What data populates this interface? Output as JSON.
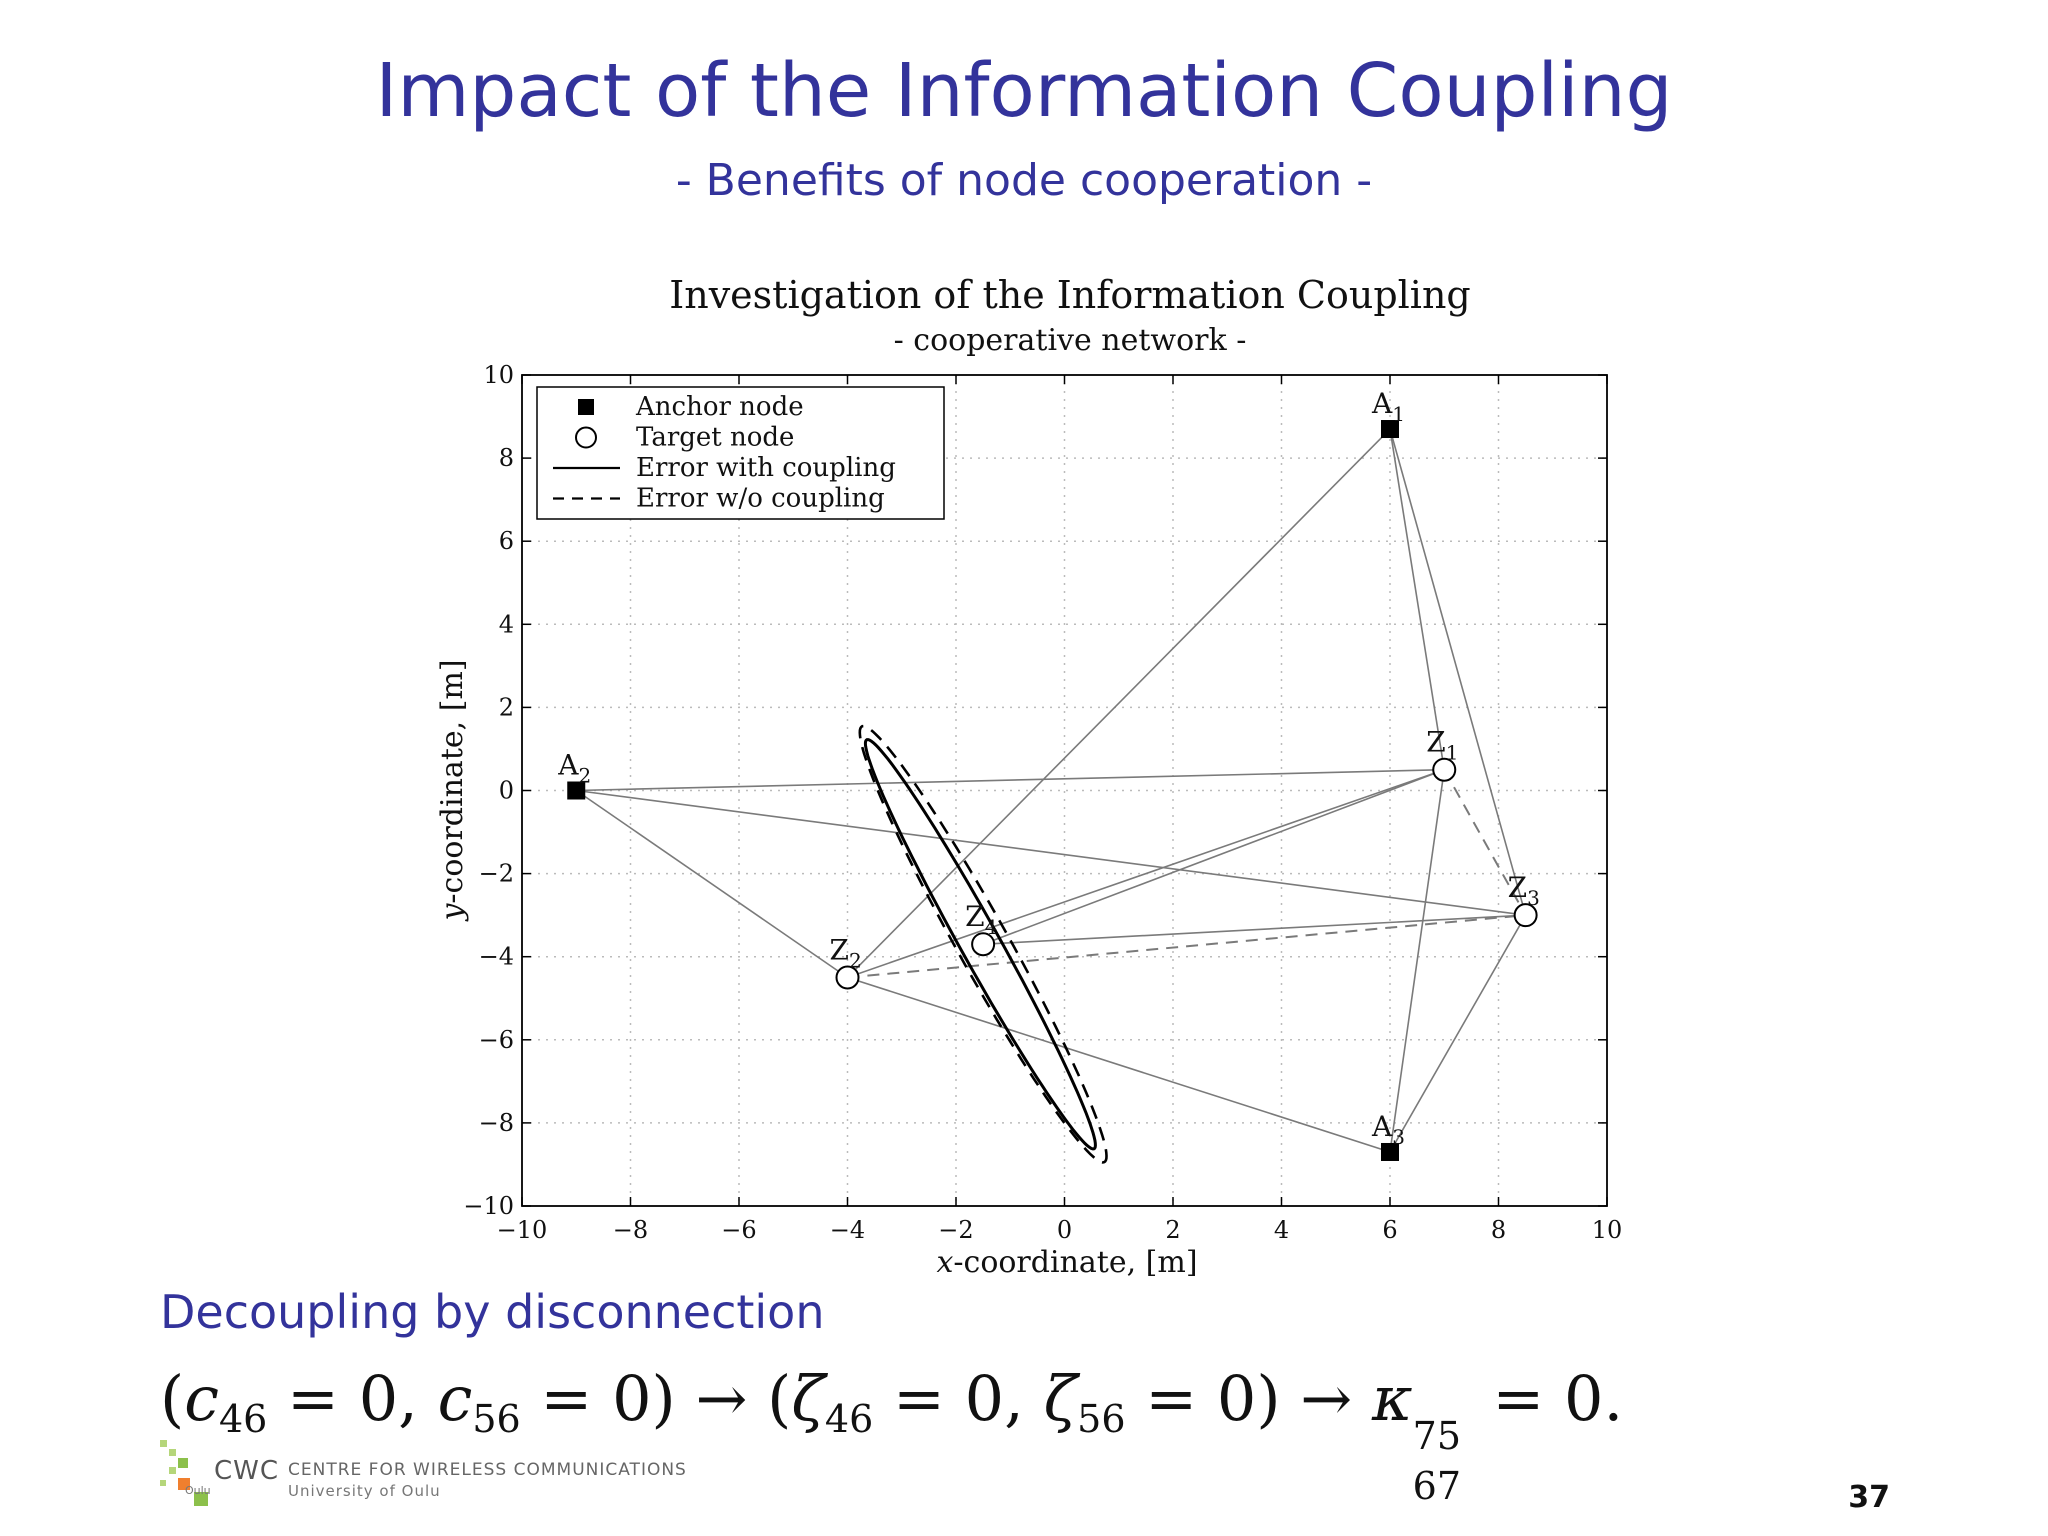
{
  "slide": {
    "title": "Impact of the Information Coupling",
    "subtitle": "- Benefits of node cooperation -",
    "section_heading": "Decoupling by disconnection",
    "page_number": "37"
  },
  "equation": {
    "c46": "c",
    "c46_sub": "46",
    "c56": "c",
    "c56_sub": "56",
    "zeta": "ζ",
    "zeta46_sub": "46",
    "zeta56_sub": "56",
    "kappa": "κ",
    "kappa_sup": "75",
    "kappa_sub": "67",
    "zero": "0",
    "equals": "=",
    "arrow": "→",
    "lparen": "(",
    "rparen": ")",
    "comma": ",",
    "period": "."
  },
  "logo": {
    "abbrev": "CWC",
    "city": "Oulu",
    "centre": "CENTRE FOR WIRELESS COMMUNICATIONS",
    "university": "University of Oulu",
    "colors": {
      "green_light": "#b5d67a",
      "green": "#8cc04b",
      "orange": "#f07f2e"
    }
  },
  "chart_data": {
    "type": "scatter",
    "title": "Investigation of the Information Coupling",
    "subtitle": "- cooperative network -",
    "xlabel_var": "x",
    "xlabel_rest": "-coordinate, [m]",
    "ylabel_var": "y",
    "ylabel_rest": "-coordinate, [m]",
    "xlim": [
      -10,
      10
    ],
    "ylim": [
      -10,
      10
    ],
    "xticks": [
      -10,
      -8,
      -6,
      -4,
      -2,
      0,
      2,
      4,
      6,
      8,
      10
    ],
    "yticks": [
      -10,
      -8,
      -6,
      -4,
      -2,
      0,
      2,
      4,
      6,
      8,
      10
    ],
    "grid": true,
    "legend_position": "top-left",
    "legend": [
      {
        "label": "Anchor node",
        "marker": "square"
      },
      {
        "label": "Target node",
        "marker": "circle"
      },
      {
        "label": "Error with coupling",
        "marker": "solid-line"
      },
      {
        "label": "Error w/o coupling",
        "marker": "dashed-line"
      }
    ],
    "anchors": [
      {
        "label": "A",
        "sub": "1",
        "x": 6,
        "y": 8.7
      },
      {
        "label": "A",
        "sub": "2",
        "x": -9,
        "y": 0
      },
      {
        "label": "A",
        "sub": "3",
        "x": 6,
        "y": -8.7
      }
    ],
    "targets": [
      {
        "label": "Z",
        "sub": "1",
        "x": 7,
        "y": 0.5
      },
      {
        "label": "Z",
        "sub": "2",
        "x": -4,
        "y": -4.5
      },
      {
        "label": "Z",
        "sub": "3",
        "x": 8.5,
        "y": -3
      },
      {
        "label": "Z",
        "sub": "4",
        "x": -1.5,
        "y": -3.7
      }
    ],
    "links_solid": [
      [
        "A1",
        "Z1"
      ],
      [
        "A1",
        "Z3"
      ],
      [
        "A1",
        "Z2"
      ],
      [
        "A2",
        "Z1"
      ],
      [
        "A2",
        "Z2"
      ],
      [
        "A2",
        "Z3"
      ],
      [
        "A3",
        "Z1"
      ],
      [
        "A3",
        "Z2"
      ],
      [
        "A3",
        "Z3"
      ],
      [
        "Z2",
        "Z1"
      ],
      [
        "Z4",
        "Z1"
      ],
      [
        "Z4",
        "Z3"
      ]
    ],
    "links_dashed": [
      [
        "Z1",
        "Z3"
      ],
      [
        "Z2",
        "Z3"
      ]
    ],
    "ellipse_with_coupling": {
      "center_x": -1.55,
      "center_y": -3.7,
      "semi_major": 5.35,
      "semi_minor": 0.38,
      "angle_deg": -67
    },
    "ellipse_without_coupling": {
      "center_x": -1.5,
      "center_y": -3.7,
      "semi_major": 5.7,
      "semi_minor": 0.5,
      "angle_deg": -67
    },
    "colors": {
      "link": "#7a7a7a",
      "grid": "#bbbbbb",
      "ink": "#000000"
    }
  }
}
